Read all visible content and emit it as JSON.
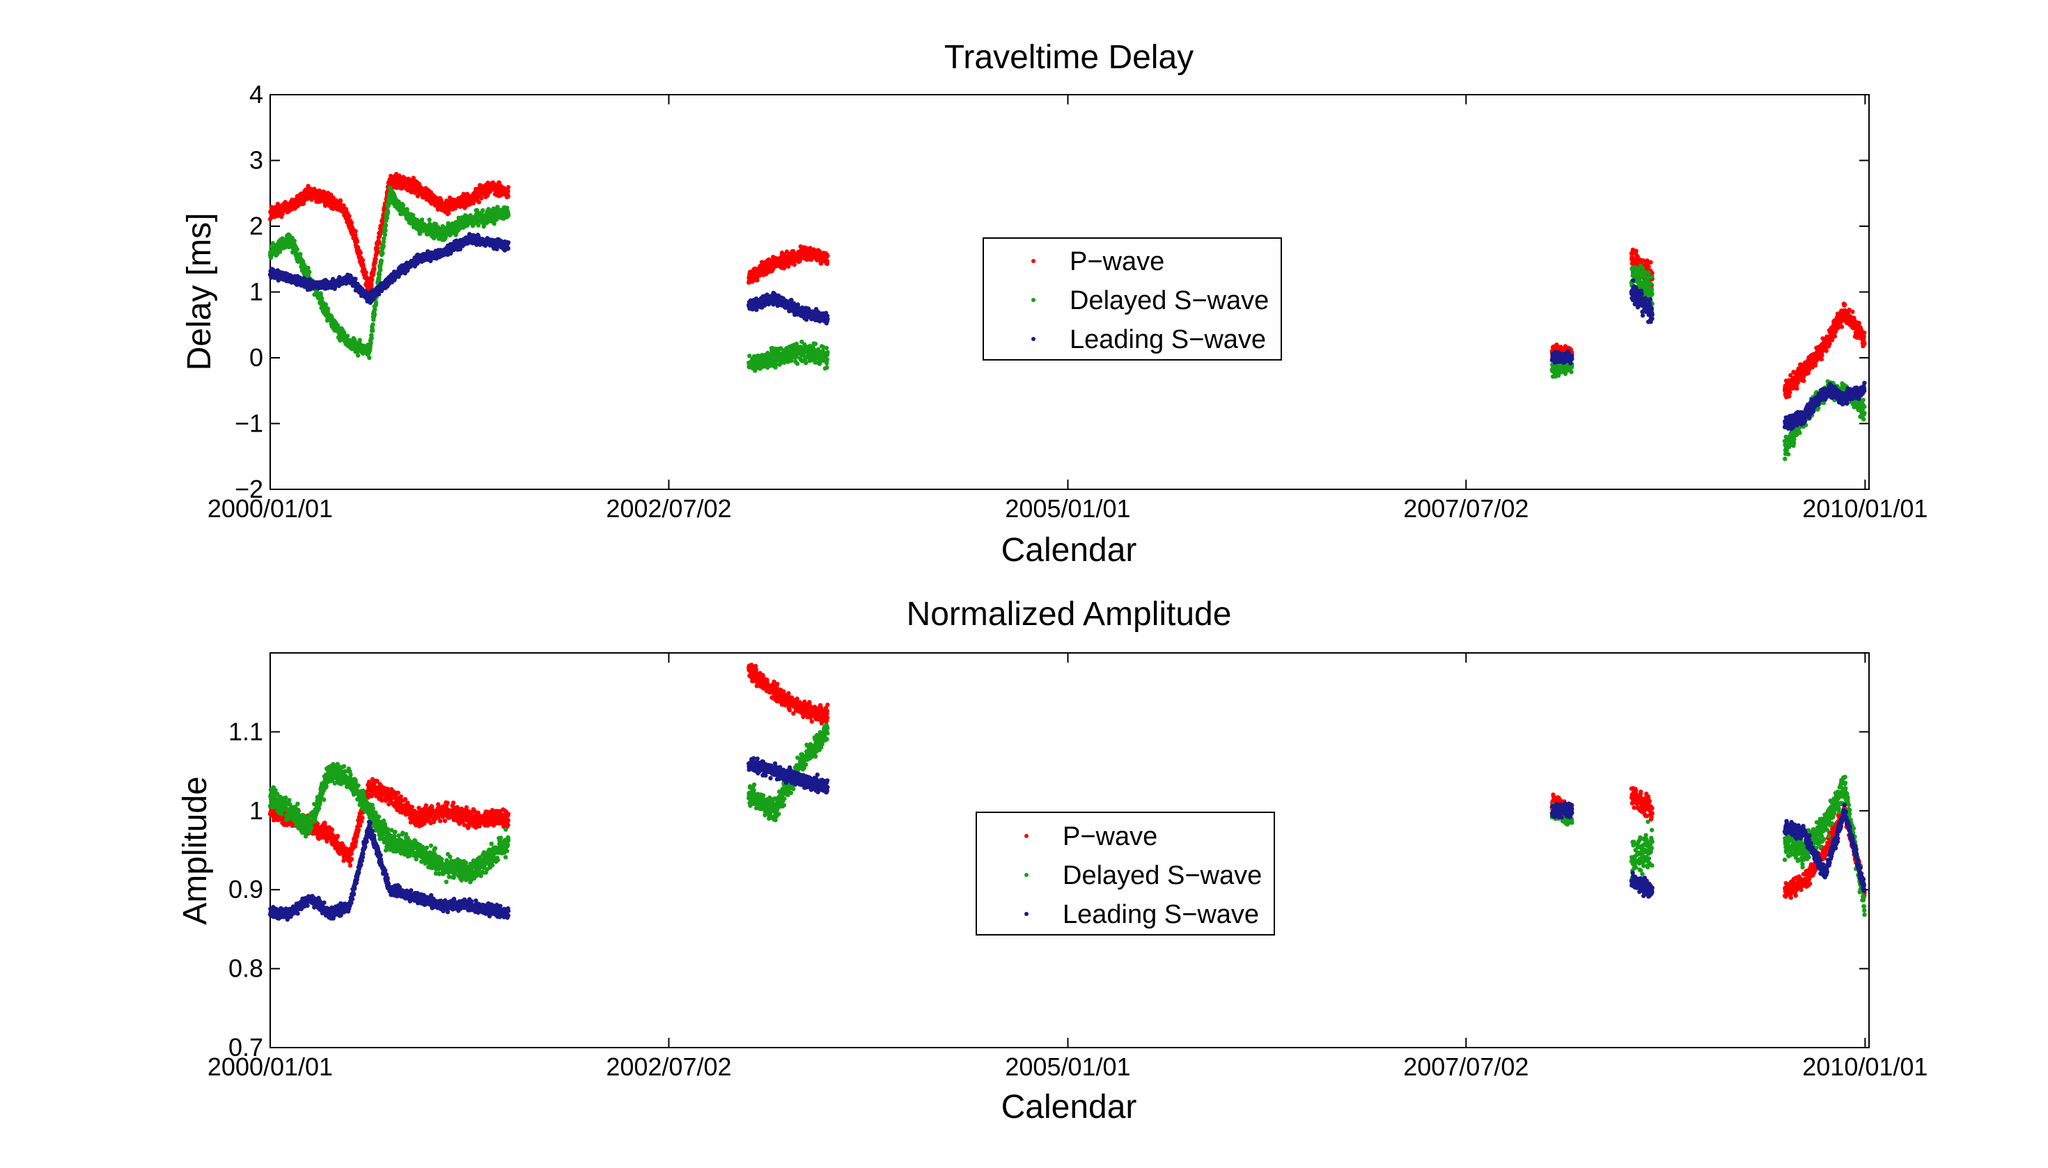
{
  "chart_data": [
    {
      "type": "scatter",
      "title": "Traveltime Delay",
      "xlabel": "Calendar",
      "ylabel": "Delay [ms]",
      "xlim": [
        "2000/01/01",
        "2010/01/10"
      ],
      "ylim": [
        -2,
        4
      ],
      "xticks": [
        "2000/01/01",
        "2002/07/02",
        "2005/01/01",
        "2007/07/02",
        "2010/01/01"
      ],
      "yticks": [
        -2,
        -1,
        0,
        1,
        2,
        3,
        4
      ],
      "ytick_labels": [
        "−2",
        "−1",
        "0",
        "1",
        "2",
        "3",
        "4"
      ],
      "grid": false,
      "legend_position": "center",
      "legend": [
        "P−wave",
        "Delayed S−wave",
        "Leading S−wave"
      ],
      "series": [
        {
          "name": "P−wave",
          "color": "#ff0000",
          "clusters": [
            {
              "x": [
                "2000/01/01",
                "2000/02/15",
                "2000/04/01",
                "2000/05/15",
                "2000/06/15",
                "2000/07/15",
                "2000/08/15",
                "2000/10/01",
                "2000/12/01",
                "2001/02/01",
                "2001/04/01",
                "2001/05/15",
                "2001/06/30"
              ],
              "y": [
                2.2,
                2.3,
                2.5,
                2.4,
                2.3,
                1.8,
                1.0,
                2.7,
                2.6,
                2.3,
                2.4,
                2.6,
                2.5
              ],
              "noise": 0.15
            },
            {
              "x": [
                "2003/01/01",
                "2003/02/15",
                "2003/04/01",
                "2003/05/15",
                "2003/07/01"
              ],
              "y": [
                1.2,
                1.4,
                1.5,
                1.6,
                1.5
              ],
              "noise": 0.15
            },
            {
              "x": [
                "2008/01/15",
                "2008/03/01"
              ],
              "y": [
                0.1,
                0.1
              ],
              "noise": 0.12
            },
            {
              "x": [
                "2008/07/15",
                "2008/09/01"
              ],
              "y": [
                1.5,
                1.2
              ],
              "noise": 0.3
            },
            {
              "x": [
                "2009/07/01",
                "2009/08/15",
                "2009/10/01",
                "2009/11/15",
                "2009/12/31"
              ],
              "y": [
                -0.5,
                -0.2,
                0.2,
                0.7,
                0.3
              ],
              "noise": 0.2
            }
          ]
        },
        {
          "name": "Delayed S−wave",
          "color": "#18a018",
          "clusters": [
            {
              "x": [
                "2000/01/01",
                "2000/02/15",
                "2000/04/01",
                "2000/05/15",
                "2000/07/01",
                "2000/08/15",
                "2000/10/01",
                "2000/12/01",
                "2001/02/01",
                "2001/04/01",
                "2001/06/30"
              ],
              "y": [
                1.6,
                1.8,
                1.2,
                0.6,
                0.2,
                0.1,
                2.5,
                2.0,
                1.9,
                2.1,
                2.2
              ],
              "noise": 0.15
            },
            {
              "x": [
                "2003/01/01",
                "2003/03/01",
                "2003/05/01",
                "2003/07/01"
              ],
              "y": [
                -0.1,
                0.0,
                0.1,
                0.0
              ],
              "noise": 0.2
            },
            {
              "x": [
                "2008/01/15",
                "2008/03/01"
              ],
              "y": [
                -0.2,
                -0.1
              ],
              "noise": 0.15
            },
            {
              "x": [
                "2008/07/15",
                "2008/09/01"
              ],
              "y": [
                1.3,
                1.0
              ],
              "noise": 0.35
            },
            {
              "x": [
                "2009/07/01",
                "2009/08/15",
                "2009/10/01",
                "2009/11/15",
                "2009/12/31"
              ],
              "y": [
                -1.4,
                -0.9,
                -0.5,
                -0.5,
                -0.8
              ],
              "noise": 0.2
            }
          ]
        },
        {
          "name": "Leading S−wave",
          "color": "#1a1a8c",
          "clusters": [
            {
              "x": [
                "2000/01/01",
                "2000/02/15",
                "2000/04/01",
                "2000/05/15",
                "2000/07/01",
                "2000/08/15",
                "2000/10/01",
                "2000/12/01",
                "2001/02/01",
                "2001/04/01",
                "2001/06/30"
              ],
              "y": [
                1.3,
                1.2,
                1.1,
                1.1,
                1.2,
                0.9,
                1.2,
                1.5,
                1.6,
                1.8,
                1.7
              ],
              "noise": 0.1
            },
            {
              "x": [
                "2003/01/01",
                "2003/03/01",
                "2003/05/01",
                "2003/07/01"
              ],
              "y": [
                0.8,
                0.9,
                0.7,
                0.6
              ],
              "noise": 0.12
            },
            {
              "x": [
                "2008/01/15",
                "2008/03/01"
              ],
              "y": [
                0.0,
                0.0
              ],
              "noise": 0.12
            },
            {
              "x": [
                "2008/07/15",
                "2008/09/01"
              ],
              "y": [
                1.0,
                0.7
              ],
              "noise": 0.25
            },
            {
              "x": [
                "2009/07/01",
                "2009/08/15",
                "2009/10/01",
                "2009/11/15",
                "2009/12/31"
              ],
              "y": [
                -1.0,
                -0.9,
                -0.5,
                -0.6,
                -0.5
              ],
              "noise": 0.15
            }
          ]
        }
      ]
    },
    {
      "type": "scatter",
      "title": "Normalized Amplitude",
      "xlabel": "Calendar",
      "ylabel": "Amplitude",
      "xlim": [
        "2000/01/01",
        "2010/01/10"
      ],
      "ylim": [
        0.7,
        1.2
      ],
      "xticks": [
        "2000/01/01",
        "2002/07/02",
        "2005/01/01",
        "2007/07/02",
        "2010/01/01"
      ],
      "yticks": [
        0.7,
        0.8,
        0.9,
        1,
        1.1
      ],
      "ytick_labels": [
        "0.7",
        "0.8",
        "0.9",
        "1",
        "1.1"
      ],
      "grid": false,
      "legend_position": "center",
      "legend": [
        "P−wave",
        "Delayed S−wave",
        "Leading S−wave"
      ],
      "series": [
        {
          "name": "P−wave",
          "color": "#ff0000",
          "clusters": [
            {
              "x": [
                "2000/01/01",
                "2000/02/15",
                "2000/04/01",
                "2000/05/15",
                "2000/07/01",
                "2000/08/15",
                "2000/10/01",
                "2000/12/01",
                "2001/02/01",
                "2001/04/01",
                "2001/06/30"
              ],
              "y": [
                1.0,
                0.99,
                0.98,
                0.97,
                0.94,
                1.03,
                1.02,
                0.99,
                1.0,
                0.99,
                0.99
              ],
              "noise": 0.015
            },
            {
              "x": [
                "2003/01/01",
                "2003/03/01",
                "2003/05/01",
                "2003/07/01"
              ],
              "y": [
                1.18,
                1.15,
                1.13,
                1.12
              ],
              "noise": 0.015
            },
            {
              "x": [
                "2008/01/15",
                "2008/03/01"
              ],
              "y": [
                1.01,
                1.0
              ],
              "noise": 0.015
            },
            {
              "x": [
                "2008/07/15",
                "2008/09/01"
              ],
              "y": [
                1.02,
                1.0
              ],
              "noise": 0.02
            },
            {
              "x": [
                "2009/07/01",
                "2009/08/15",
                "2009/10/01",
                "2009/11/15",
                "2009/12/31"
              ],
              "y": [
                0.9,
                0.91,
                0.95,
                1.0,
                0.9
              ],
              "noise": 0.015
            }
          ]
        },
        {
          "name": "Delayed S−wave",
          "color": "#18a018",
          "clusters": [
            {
              "x": [
                "2000/01/01",
                "2000/02/15",
                "2000/04/01",
                "2000/05/15",
                "2000/07/01",
                "2000/08/15",
                "2000/10/01",
                "2000/12/01",
                "2001/02/01",
                "2001/04/01",
                "2001/06/30"
              ],
              "y": [
                1.02,
                1.0,
                0.98,
                1.05,
                1.04,
                1.0,
                0.96,
                0.95,
                0.93,
                0.92,
                0.96
              ],
              "noise": 0.02
            },
            {
              "x": [
                "2003/01/01",
                "2003/03/01",
                "2003/05/01",
                "2003/07/01"
              ],
              "y": [
                1.02,
                1.0,
                1.06,
                1.1
              ],
              "noise": 0.02
            },
            {
              "x": [
                "2008/01/15",
                "2008/03/01"
              ],
              "y": [
                1.0,
                0.99
              ],
              "noise": 0.015
            },
            {
              "x": [
                "2008/07/15",
                "2008/09/01"
              ],
              "y": [
                0.93,
                0.96
              ],
              "noise": 0.04
            },
            {
              "x": [
                "2009/07/01",
                "2009/08/15",
                "2009/10/01",
                "2009/11/15",
                "2009/12/31"
              ],
              "y": [
                0.96,
                0.95,
                0.98,
                1.03,
                0.88
              ],
              "noise": 0.025
            }
          ]
        },
        {
          "name": "Leading S−wave",
          "color": "#1a1a8c",
          "clusters": [
            {
              "x": [
                "2000/01/01",
                "2000/02/15",
                "2000/04/01",
                "2000/05/15",
                "2000/07/01",
                "2000/08/15",
                "2000/10/01",
                "2000/12/01",
                "2001/02/01",
                "2001/04/01",
                "2001/06/30"
              ],
              "y": [
                0.87,
                0.87,
                0.89,
                0.87,
                0.88,
                0.98,
                0.9,
                0.89,
                0.88,
                0.88,
                0.87
              ],
              "noise": 0.01
            },
            {
              "x": [
                "2003/01/01",
                "2003/03/01",
                "2003/05/01",
                "2003/07/01"
              ],
              "y": [
                1.06,
                1.05,
                1.04,
                1.03
              ],
              "noise": 0.012
            },
            {
              "x": [
                "2008/01/15",
                "2008/03/01"
              ],
              "y": [
                1.0,
                1.0
              ],
              "noise": 0.012
            },
            {
              "x": [
                "2008/07/15",
                "2008/09/01"
              ],
              "y": [
                0.91,
                0.9
              ],
              "noise": 0.015
            },
            {
              "x": [
                "2009/07/01",
                "2009/08/15",
                "2009/10/01",
                "2009/11/15",
                "2009/12/31"
              ],
              "y": [
                0.98,
                0.97,
                0.92,
                1.0,
                0.9
              ],
              "noise": 0.012
            }
          ]
        }
      ]
    }
  ]
}
